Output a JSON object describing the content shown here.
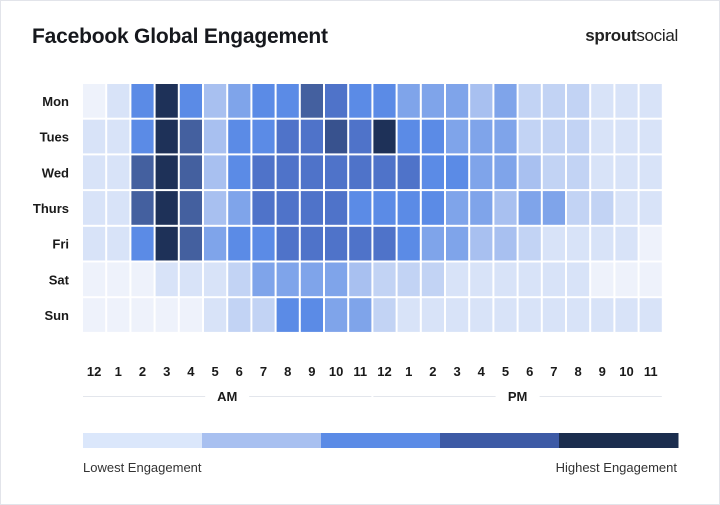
{
  "title": "Facebook Global Engagement",
  "brand": {
    "part1": "sprout",
    "part2": "social"
  },
  "chart_data": {
    "type": "heatmap",
    "title": "Facebook Global Engagement",
    "rows": [
      "Mon",
      "Tues",
      "Wed",
      "Thurs",
      "Fri",
      "Sat",
      "Sun"
    ],
    "columns": [
      "12",
      "1",
      "2",
      "3",
      "4",
      "5",
      "6",
      "7",
      "8",
      "9",
      "10",
      "11",
      "12",
      "1",
      "2",
      "3",
      "4",
      "5",
      "6",
      "7",
      "8",
      "9",
      "10",
      "11"
    ],
    "periods": [
      {
        "label": "AM",
        "start": 0,
        "end": 11
      },
      {
        "label": "PM",
        "start": 12,
        "end": 23
      }
    ],
    "scale": "engagement level 1 (lowest) to 10 (highest)",
    "values": [
      [
        1,
        2,
        6,
        10,
        6,
        4,
        5,
        6,
        6,
        8,
        7,
        6,
        6,
        5,
        5,
        5,
        4,
        5,
        3,
        3,
        3,
        2,
        2,
        2
      ],
      [
        2,
        2,
        6,
        10,
        8,
        4,
        6,
        6,
        7,
        7,
        9,
        7,
        10,
        6,
        6,
        5,
        5,
        5,
        3,
        3,
        3,
        2,
        2,
        2
      ],
      [
        2,
        2,
        8,
        10,
        8,
        4,
        6,
        7,
        7,
        7,
        7,
        7,
        7,
        7,
        6,
        6,
        5,
        5,
        4,
        3,
        3,
        2,
        2,
        2
      ],
      [
        2,
        2,
        8,
        10,
        8,
        4,
        5,
        7,
        7,
        7,
        7,
        6,
        6,
        6,
        6,
        5,
        5,
        4,
        5,
        5,
        3,
        3,
        2,
        2
      ],
      [
        2,
        2,
        6,
        10,
        8,
        5,
        6,
        6,
        7,
        7,
        7,
        7,
        7,
        6,
        5,
        5,
        4,
        4,
        3,
        2,
        2,
        2,
        2,
        1
      ],
      [
        1,
        1,
        1,
        2,
        2,
        2,
        3,
        5,
        5,
        5,
        5,
        4,
        3,
        3,
        3,
        2,
        2,
        2,
        2,
        2,
        2,
        1,
        1,
        1
      ],
      [
        1,
        1,
        1,
        1,
        1,
        2,
        3,
        3,
        6,
        6,
        5,
        5,
        3,
        2,
        2,
        2,
        2,
        2,
        2,
        2,
        2,
        2,
        2,
        2
      ]
    ],
    "color_scale": [
      "#eef2fb",
      "#d8e3f8",
      "#c2d3f4",
      "#a8c0f0",
      "#7fa4ea",
      "#5b8be6",
      "#4f73c9",
      "#44609f",
      "#38528e",
      "#1e3158"
    ],
    "legend": {
      "colors": [
        "#dbe7fb",
        "#a8c0f0",
        "#5b8be6",
        "#3d5aa5",
        "#1b2d4e"
      ],
      "low_label": "Lowest Engagement",
      "high_label": "Highest Engagement",
      "placement": "bottom"
    }
  }
}
